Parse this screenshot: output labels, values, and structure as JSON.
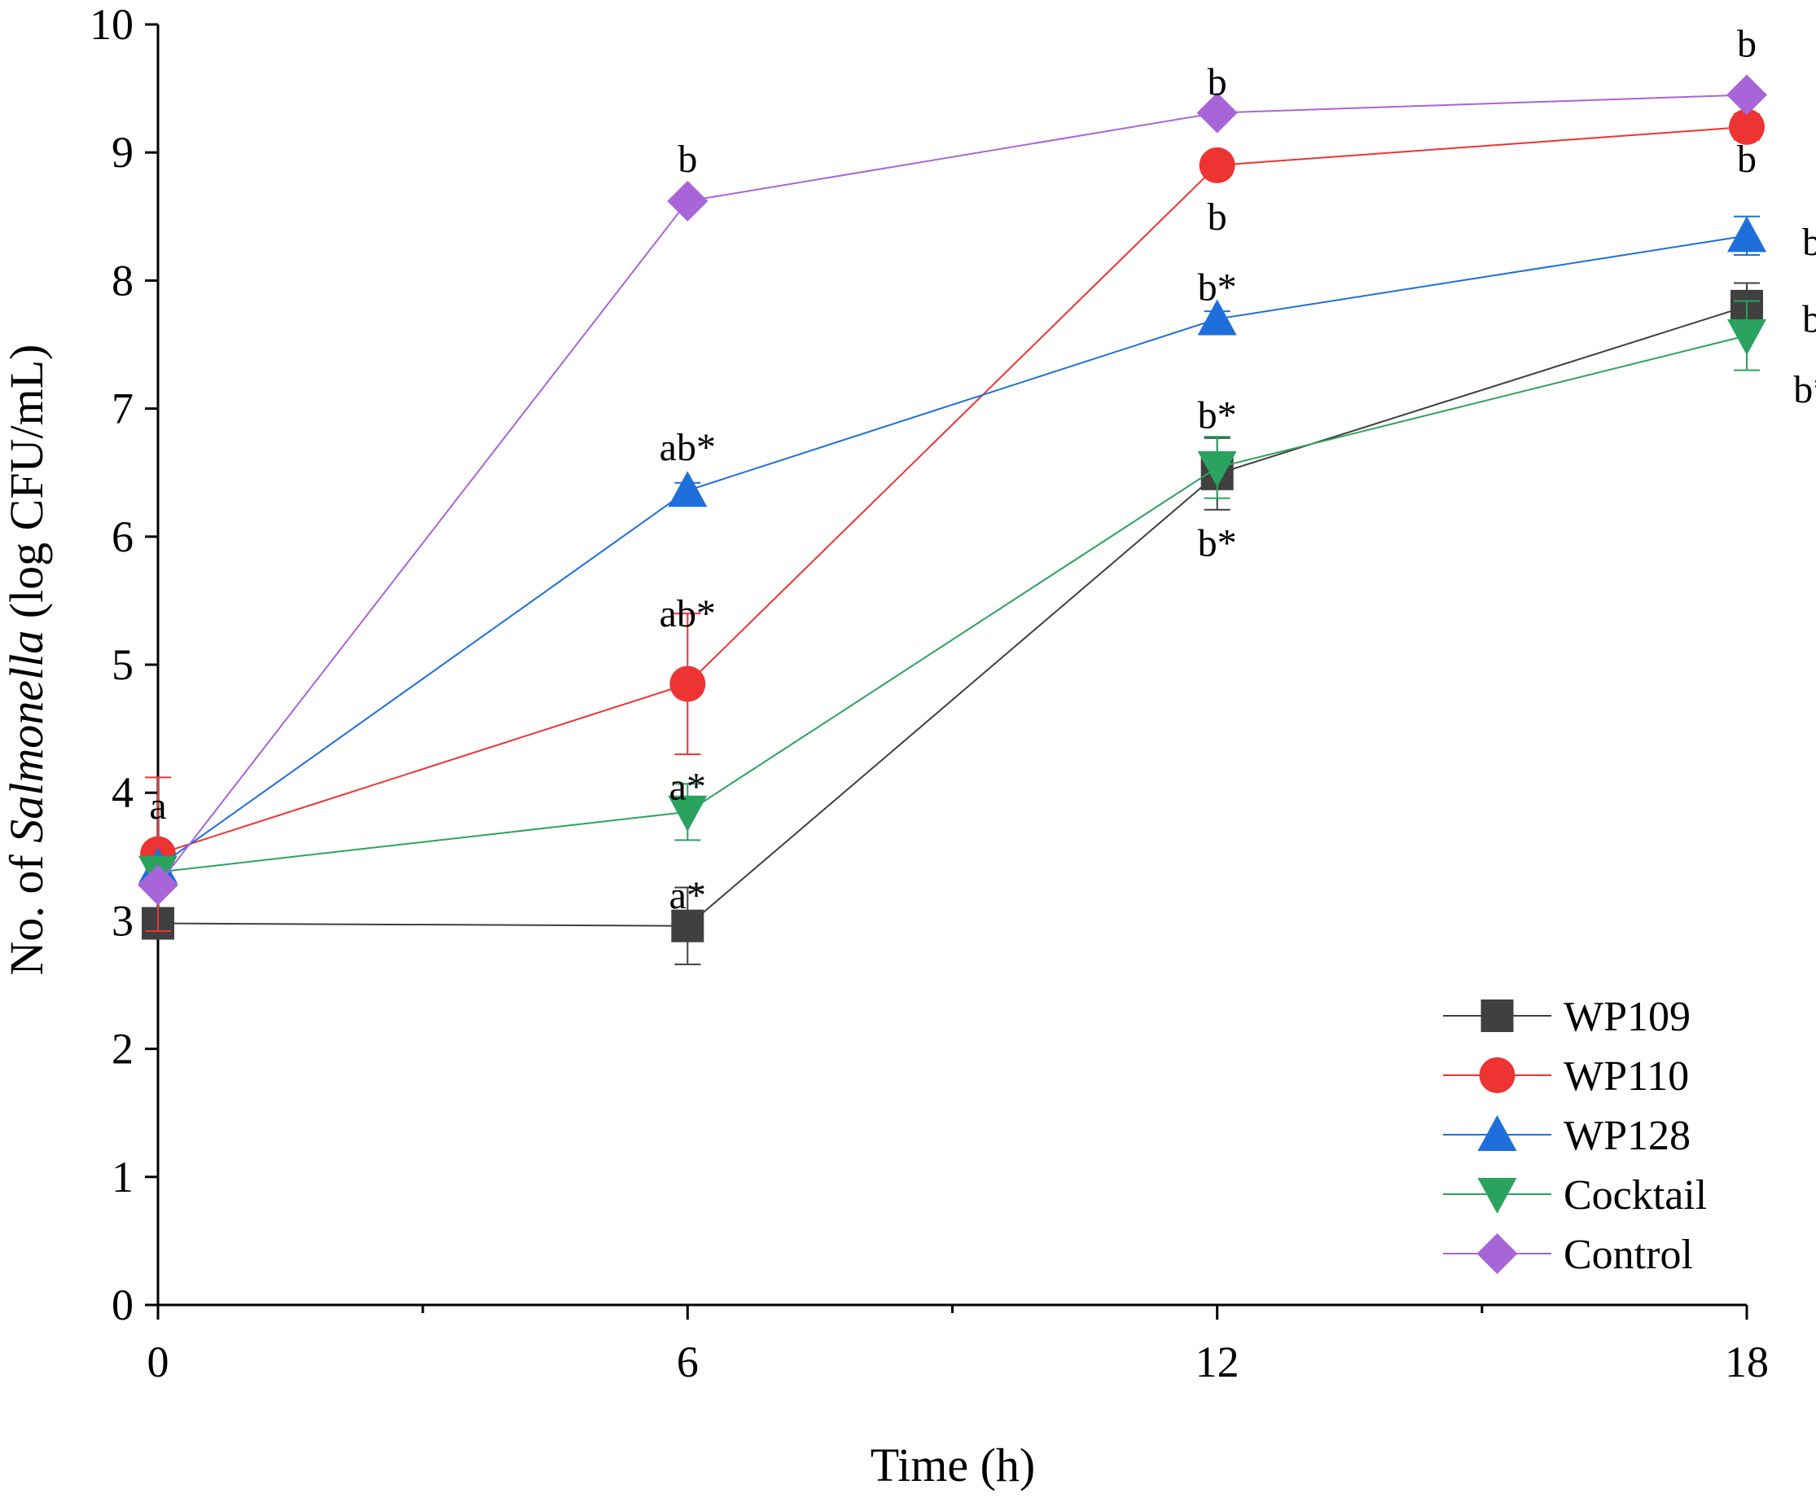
{
  "chart_data": {
    "type": "line",
    "title": "",
    "xlabel": "Time (h)",
    "ylabel_prefix": "No. of ",
    "ylabel_italic": "Salmonella",
    "ylabel_suffix": " (log CFU/mL)",
    "x": [
      0,
      6,
      12,
      18
    ],
    "xlim": [
      0,
      18
    ],
    "ylim": [
      0,
      10
    ],
    "xticks": [
      "0",
      "6",
      "12",
      "18"
    ],
    "yticks": [
      "0",
      "1",
      "2",
      "3",
      "4",
      "5",
      "6",
      "7",
      "8",
      "9",
      "10"
    ],
    "legend_position": "bottom-right",
    "series": [
      {
        "name": "WP109",
        "color": "#404040",
        "marker": "square",
        "values": [
          2.98,
          2.96,
          6.49,
          7.8
        ],
        "errors": [
          0.05,
          0.3,
          0.28,
          0.18
        ]
      },
      {
        "name": "WP110",
        "color": "#ee3333",
        "marker": "circle",
        "values": [
          3.52,
          4.85,
          8.9,
          9.2
        ],
        "errors": [
          0.6,
          0.55,
          0.05,
          0.1
        ]
      },
      {
        "name": "WP128",
        "color": "#1e6fdc",
        "marker": "triangle-up",
        "values": [
          3.42,
          6.36,
          7.7,
          8.35
        ],
        "errors": [
          0.06,
          0.06,
          0.06,
          0.15
        ]
      },
      {
        "name": "Cocktail",
        "color": "#2aa35f",
        "marker": "triangle-down",
        "values": [
          3.38,
          3.85,
          6.54,
          7.57
        ],
        "errors": [
          0.06,
          0.22,
          0.24,
          0.27
        ]
      },
      {
        "name": "Control",
        "color": "#a865d8",
        "marker": "diamond",
        "values": [
          3.28,
          8.62,
          9.31,
          9.45
        ],
        "errors": [
          0.05,
          0.05,
          0.05,
          0.05
        ]
      }
    ],
    "annotations": [
      {
        "text": "a",
        "x": 0,
        "y": 3.9
      },
      {
        "text": "a*",
        "x": 6,
        "y": 3.2
      },
      {
        "text": "a*",
        "x": 6,
        "y": 4.05
      },
      {
        "text": "ab*",
        "x": 6,
        "y": 5.4
      },
      {
        "text": "ab*",
        "x": 6,
        "y": 6.7
      },
      {
        "text": "b",
        "x": 6,
        "y": 8.95
      },
      {
        "text": "b",
        "x": 12,
        "y": 9.55
      },
      {
        "text": "b",
        "x": 12,
        "y": 8.5
      },
      {
        "text": "b*",
        "x": 12,
        "y": 7.95
      },
      {
        "text": "b*",
        "x": 12,
        "y": 6.95
      },
      {
        "text": "b*",
        "x": 12,
        "y": 5.95
      },
      {
        "text": "b",
        "x": 18,
        "y": 9.85
      },
      {
        "text": "b",
        "x": 18,
        "y": 8.95
      },
      {
        "text": "b*",
        "x": 18.85,
        "y": 8.3
      },
      {
        "text": "b*",
        "x": 18.85,
        "y": 7.7
      },
      {
        "text": "b*",
        "x": 18.75,
        "y": 7.15
      }
    ]
  }
}
